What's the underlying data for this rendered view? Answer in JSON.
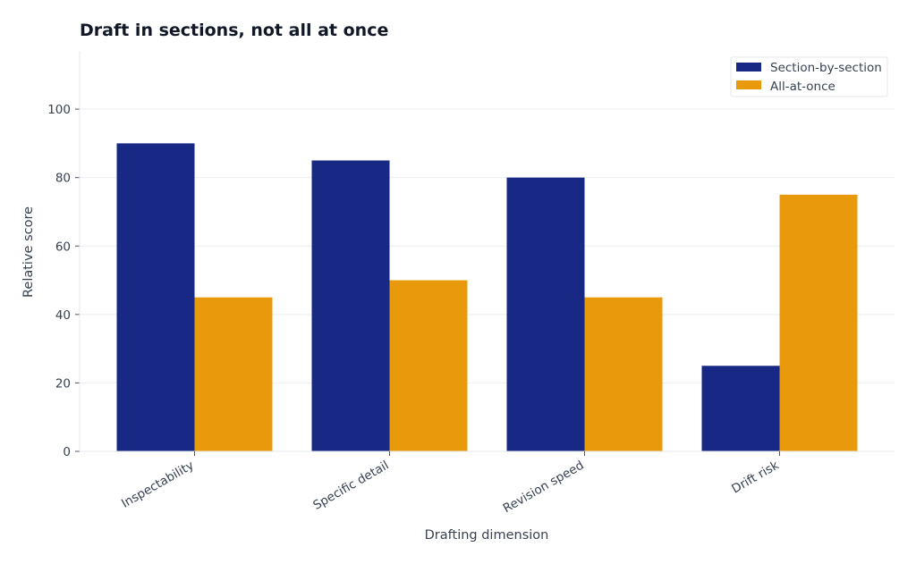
{
  "chart_data": {
    "type": "bar",
    "title": "Draft in sections, not all at once",
    "xlabel": "Drafting dimension",
    "ylabel": "Relative score",
    "categories": [
      "Inspectability",
      "Specific detail",
      "Revision speed",
      "Drift risk"
    ],
    "series": [
      {
        "name": "Section-by-section",
        "color": "#172984",
        "values": [
          90,
          85,
          80,
          25
        ]
      },
      {
        "name": "All-at-once",
        "color": "#E89A0C",
        "values": [
          45,
          50,
          45,
          75
        ]
      }
    ],
    "ylim": [
      0,
      117
    ],
    "yticks": [
      0,
      20,
      40,
      60,
      80,
      100
    ],
    "grid": true,
    "legend_position": "top-right"
  }
}
